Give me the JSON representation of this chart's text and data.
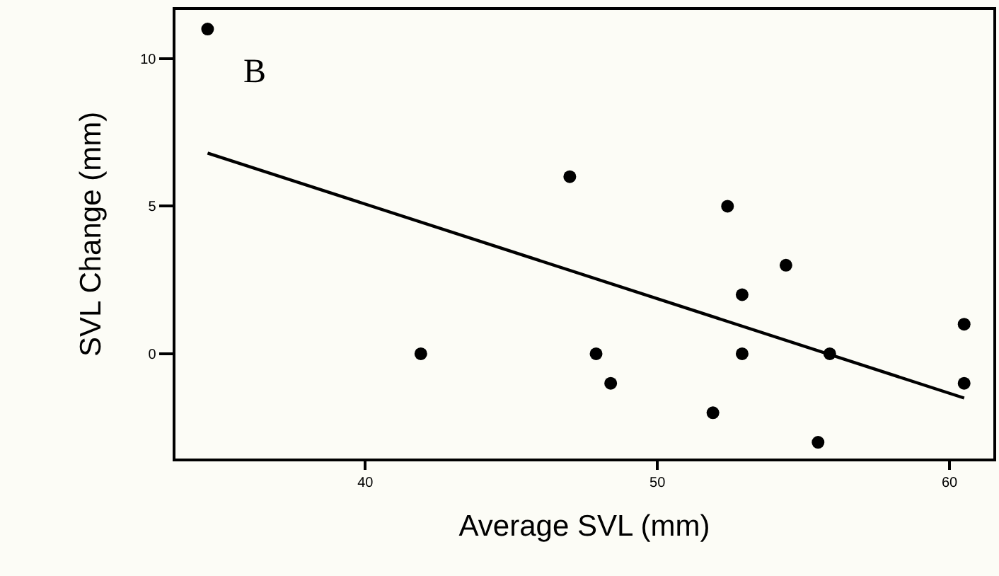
{
  "chart_data": {
    "type": "scatter",
    "xlabel": "Average SVL (mm)",
    "ylabel": "SVL Change (mm)",
    "annotations": [
      "B"
    ],
    "xlim": [
      33.5,
      61.5
    ],
    "ylim": [
      -3.55,
      11.65
    ],
    "xticks": [
      40,
      50,
      60
    ],
    "yticks": [
      0,
      5,
      10
    ],
    "grid": false,
    "marker": "circle",
    "series": [
      {
        "color": "#000000",
        "x": [
          34.6,
          41.9,
          47.0,
          52.4,
          54.4,
          52.9,
          47.9,
          48.4,
          52.9,
          51.9,
          55.9,
          55.5,
          60.5,
          60.5
        ],
        "values": [
          11,
          0,
          6,
          5,
          3,
          2,
          0,
          -1,
          0,
          -2,
          0,
          -3,
          1,
          -1
        ]
      },
      {
        "type": "line",
        "color": "#000000",
        "line_style": "solid",
        "marker": "none",
        "x": [
          34.6,
          60.5
        ],
        "values": [
          6.8,
          -1.5
        ]
      }
    ]
  }
}
